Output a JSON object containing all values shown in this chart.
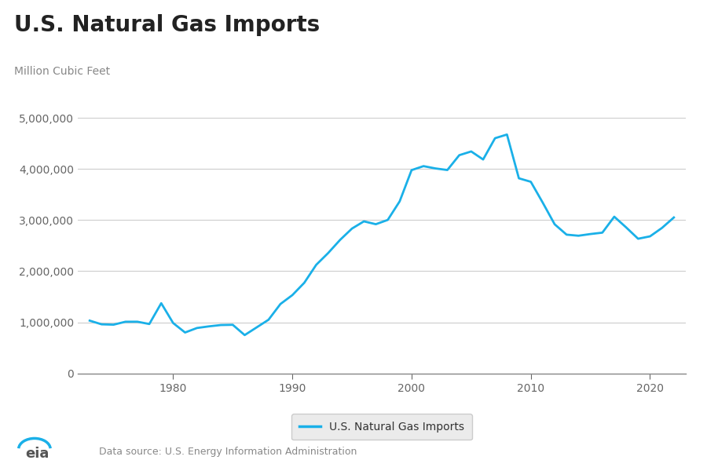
{
  "title": "U.S. Natural Gas Imports",
  "ylabel": "Million Cubic Feet",
  "legend_label": "U.S. Natural Gas Imports",
  "line_color": "#1ab0e8",
  "background_color": "#ffffff",
  "ylim": [
    -250000,
    5000000
  ],
  "yticks": [
    0,
    1000000,
    2000000,
    3000000,
    4000000,
    5000000
  ],
  "xlim": [
    1972,
    2023
  ],
  "xticks": [
    1980,
    1990,
    2000,
    2010,
    2020
  ],
  "source_text": "Data source: U.S. Energy Information Administration",
  "years": [
    1973,
    1974,
    1975,
    1976,
    1977,
    1978,
    1979,
    1980,
    1981,
    1982,
    1983,
    1984,
    1985,
    1986,
    1987,
    1988,
    1989,
    1990,
    1991,
    1992,
    1993,
    1994,
    1995,
    1996,
    1997,
    1998,
    1999,
    2000,
    2001,
    2002,
    2003,
    2004,
    2005,
    2006,
    2007,
    2008,
    2009,
    2010,
    2011,
    2012,
    2013,
    2014,
    2015,
    2016,
    2017,
    2018,
    2019,
    2020,
    2021,
    2022
  ],
  "values": [
    1032700,
    960300,
    953400,
    1011000,
    1011500,
    966300,
    1373200,
    985400,
    800700,
    888700,
    920500,
    946500,
    951000,
    750000,
    900000,
    1050000,
    1358000,
    1532000,
    1773000,
    2124000,
    2354000,
    2611000,
    2833000,
    2974000,
    2918000,
    3002000,
    3365000,
    3976000,
    4054000,
    4009000,
    3978000,
    4268000,
    4341000,
    4184000,
    4600000,
    4672000,
    3816000,
    3748000,
    3340000,
    2917000,
    2714000,
    2693000,
    2726000,
    2753000,
    3065000,
    2855000,
    2634000,
    2681000,
    2845000,
    3050000
  ],
  "title_fontsize": 20,
  "ylabel_fontsize": 10,
  "tick_fontsize": 10,
  "legend_fontsize": 10,
  "source_fontsize": 9,
  "grid_color": "#cccccc",
  "tick_color": "#666666",
  "title_color": "#222222",
  "subtitle_color": "#888888",
  "source_color": "#888888",
  "legend_facecolor": "#ebebeb",
  "legend_edgecolor": "#cccccc"
}
